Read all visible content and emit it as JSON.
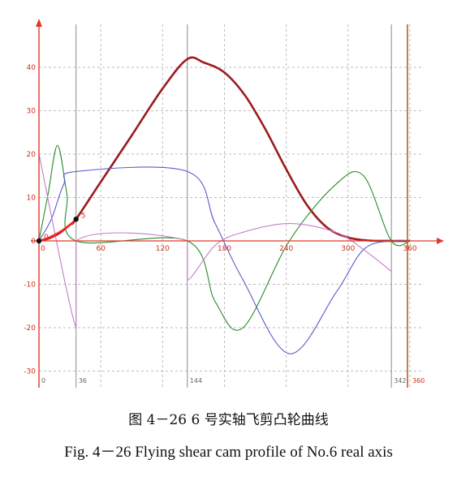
{
  "figure": {
    "caption_cn": "图 4－26 6 号实轴飞剪凸轮曲线",
    "caption_en": "Fig. 4－26 Flying shear cam profile of No.6 real axis"
  },
  "chart_data": {
    "type": "line",
    "xlim": [
      -3,
      365
    ],
    "ylim": [
      -30,
      48
    ],
    "x_ticks": [
      0,
      60,
      120,
      180,
      240,
      300,
      360
    ],
    "y_ticks": [
      -30,
      -20,
      -10,
      0,
      10,
      20,
      30,
      40
    ],
    "marker_ticks": [
      0,
      36,
      144,
      342,
      360
    ],
    "vertical_lines": [
      36,
      144,
      342
    ],
    "axis_color": "#e03a2a",
    "point_labels": [
      {
        "x": 0,
        "y": 0,
        "label": "0"
      },
      {
        "x": 36,
        "y": 5,
        "label": "5"
      }
    ],
    "series": [
      {
        "color": "#9b1c1c",
        "x": [
          0,
          10,
          20,
          30,
          36,
          60,
          90,
          120,
          144,
          160,
          180,
          200,
          220,
          240,
          260,
          280,
          300,
          320,
          342,
          360
        ],
        "values": [
          0,
          0.6,
          1.8,
          3.7,
          5,
          13.6,
          24.3,
          35.1,
          41.9,
          41.1,
          38.8,
          33.5,
          25.6,
          16.5,
          8.3,
          3,
          0.8,
          0.1,
          0,
          0
        ]
      },
      {
        "color": "#2a8a2a",
        "x": [
          0,
          9,
          18,
          27,
          36,
          144,
          171,
          198,
          243,
          288,
          315,
          342,
          360
        ],
        "values": [
          0,
          11,
          22,
          11,
          0,
          0,
          -14,
          -20,
          0,
          13,
          15,
          0,
          0
        ]
      },
      {
        "color": "#5a5acc",
        "x": [
          0,
          12,
          24,
          36,
          144,
          171,
          198,
          243,
          288,
          315,
          342,
          360
        ],
        "values": [
          0,
          5,
          13,
          16,
          16,
          4,
          -9,
          -26,
          -12,
          -2,
          0,
          0
        ]
      },
      {
        "color": "#c77ccc",
        "x": [
          0,
          36,
          36,
          144,
          144,
          171,
          198,
          243,
          288,
          315,
          342
        ],
        "values": [
          20,
          -20,
          0,
          0,
          -9,
          -1,
          2,
          4,
          2,
          -2,
          -7
        ]
      }
    ]
  }
}
